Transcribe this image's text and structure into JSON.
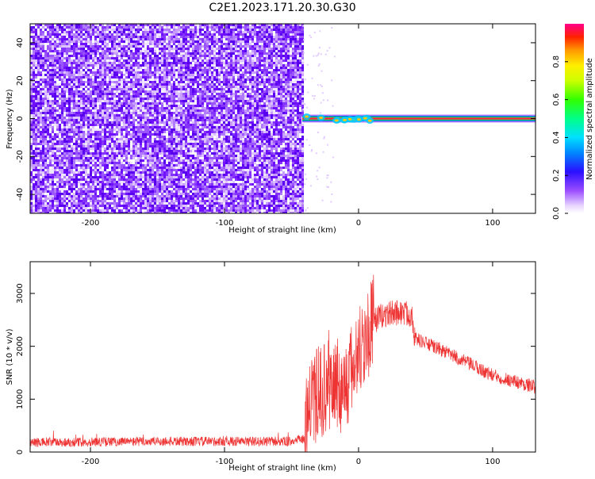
{
  "title": "C2E1.2023.171.20.30.G30",
  "colorbar": {
    "label": "Normalized spectral amplitude",
    "ticks": [
      "0.0",
      "0.2",
      "0.4",
      "0.6",
      "0.8"
    ],
    "tick_values": [
      0.0,
      0.2,
      0.4,
      0.6,
      0.8
    ],
    "range": [
      0,
      1
    ]
  },
  "chart_data": [
    {
      "type": "heatmap",
      "xlabel": "Height of straight line (km)",
      "ylabel": "Frequency (Hz)",
      "xlim": [
        -245,
        132
      ],
      "ylim": [
        -50,
        50
      ],
      "x_ticks": [
        "-200",
        "-100",
        "0",
        "100"
      ],
      "x_tick_values": [
        -200,
        -100,
        0,
        100
      ],
      "y_ticks": [
        "-40",
        "-20",
        "0",
        "20",
        "40"
      ],
      "y_tick_values": [
        -40,
        -20,
        0,
        20,
        40
      ],
      "noise_region": {
        "x_start": -245,
        "x_end": -42,
        "amplitude": 0.15
      },
      "signal_line": {
        "x_start": -42,
        "x_end": 132,
        "frequency": 0,
        "amplitude": 0.9
      }
    },
    {
      "type": "line",
      "color": "#ee3333",
      "xlabel": "Height of straight line (km)",
      "ylabel": "SNR (10 * v/v)",
      "xlim": [
        -245,
        132
      ],
      "ylim": [
        0,
        3600
      ],
      "x_ticks": [
        "-200",
        "-100",
        "0",
        "100"
      ],
      "x_tick_values": [
        -200,
        -100,
        0,
        100
      ],
      "y_ticks": [
        "0",
        "1000",
        "2000",
        "3000"
      ],
      "y_tick_values": [
        0,
        1000,
        2000,
        3000
      ],
      "profile": [
        {
          "x": -245,
          "y": 180
        },
        {
          "x": -200,
          "y": 190
        },
        {
          "x": -150,
          "y": 200
        },
        {
          "x": -100,
          "y": 200
        },
        {
          "x": -50,
          "y": 200
        },
        {
          "x": -40,
          "y": 250
        },
        {
          "x": -38,
          "y": 800
        },
        {
          "x": -30,
          "y": 1100
        },
        {
          "x": -20,
          "y": 1300
        },
        {
          "x": -10,
          "y": 1200
        },
        {
          "x": 0,
          "y": 1900
        },
        {
          "x": 12,
          "y": 2500
        },
        {
          "x": 20,
          "y": 2600
        },
        {
          "x": 30,
          "y": 2650
        },
        {
          "x": 40,
          "y": 2600
        },
        {
          "x": 42,
          "y": 2150
        },
        {
          "x": 60,
          "y": 1950
        },
        {
          "x": 80,
          "y": 1700
        },
        {
          "x": 100,
          "y": 1450
        },
        {
          "x": 132,
          "y": 1230
        }
      ]
    }
  ]
}
